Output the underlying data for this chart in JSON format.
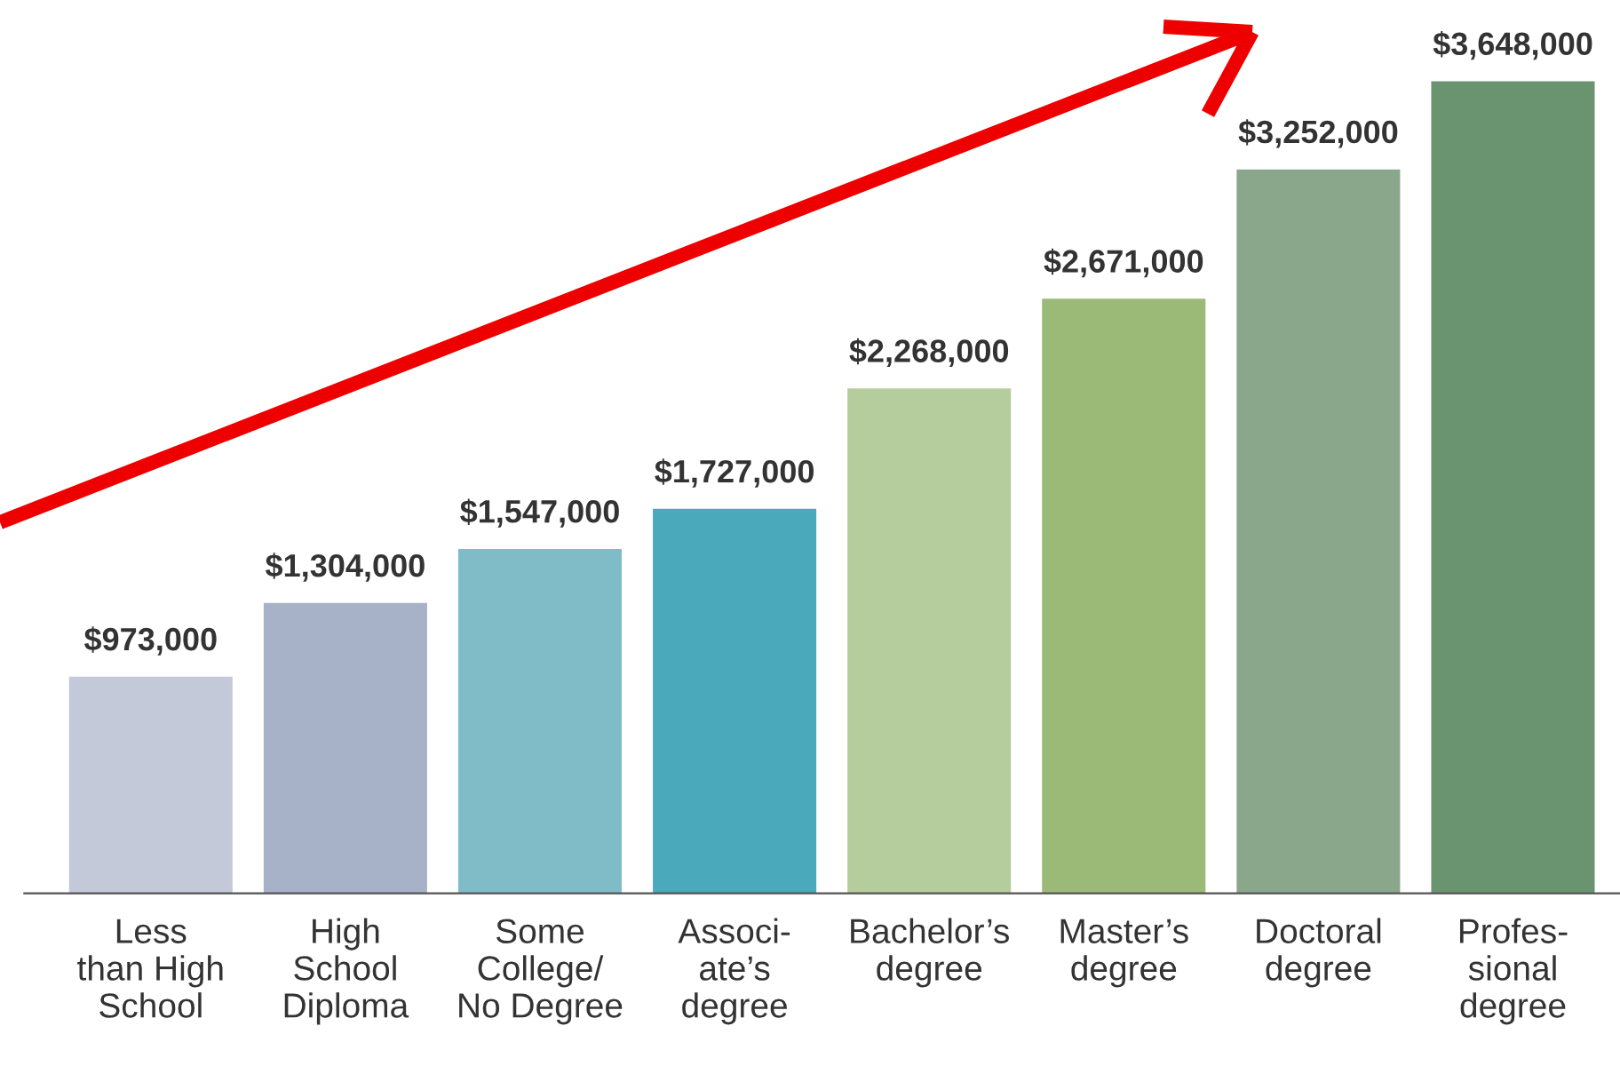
{
  "chart_data": {
    "type": "bar",
    "categories": [
      "Less\nthan High\nSchool",
      "High\nSchool\nDiploma",
      "Some\nCollege/\nNo Degree",
      "Associ-\nate’s\ndegree",
      "Bachelor’s\ndegree",
      "Master’s\ndegree",
      "Doctoral\ndegree",
      "Profes-\nsional\ndegree"
    ],
    "values": [
      973000,
      1304000,
      1547000,
      1727000,
      2268000,
      2671000,
      3252000,
      3648000
    ],
    "colors": [
      "#c3c9d9",
      "#a7b2c9",
      "#7fbcc8",
      "#4aa9bb",
      "#b5cc9c",
      "#9bba78",
      "#8aa78c",
      "#6a9470"
    ],
    "value_labels": [
      "$973,000",
      "$1,304,000",
      "$1,547,000",
      "$1,727,000",
      "$2,268,000",
      "$2,671,000",
      "$3,252,000",
      "$3,648,000"
    ],
    "grid": false,
    "legend": false
  }
}
